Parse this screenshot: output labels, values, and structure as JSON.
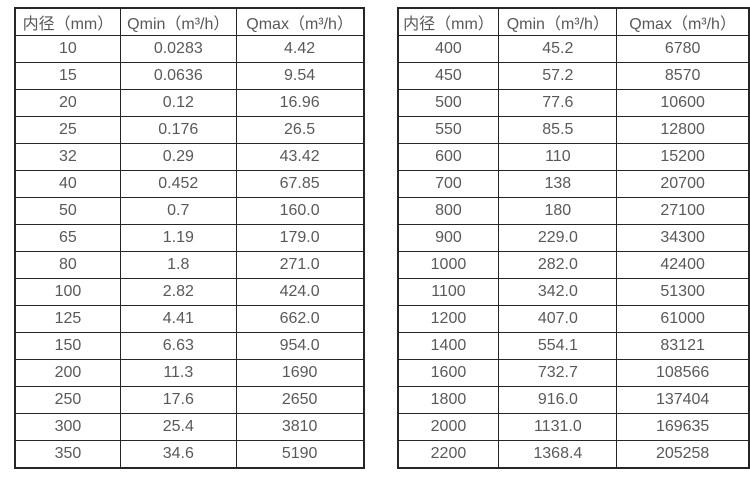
{
  "colors": {
    "border": "#262626",
    "text": "#595959",
    "background": "#ffffff"
  },
  "tables": [
    {
      "name": "small-diameter-flow-table",
      "headers": [
        "内径（mm）",
        "Qmin（m³/h）",
        "Qmax（m³/h）"
      ],
      "rows": [
        [
          "10",
          "0.0283",
          "4.42"
        ],
        [
          "15",
          "0.0636",
          "9.54"
        ],
        [
          "20",
          "0.12",
          "16.96"
        ],
        [
          "25",
          "0.176",
          "26.5"
        ],
        [
          "32",
          "0.29",
          "43.42"
        ],
        [
          "40",
          "0.452",
          "67.85"
        ],
        [
          "50",
          "0.7",
          "160.0"
        ],
        [
          "65",
          "1.19",
          "179.0"
        ],
        [
          "80",
          "1.8",
          "271.0"
        ],
        [
          "100",
          "2.82",
          "424.0"
        ],
        [
          "125",
          "4.41",
          "662.0"
        ],
        [
          "150",
          "6.63",
          "954.0"
        ],
        [
          "200",
          "11.3",
          "1690"
        ],
        [
          "250",
          "17.6",
          "2650"
        ],
        [
          "300",
          "25.4",
          "3810"
        ],
        [
          "350",
          "34.6",
          "5190"
        ]
      ]
    },
    {
      "name": "large-diameter-flow-table",
      "headers": [
        "内径（mm）",
        "Qmin（m³/h）",
        "Qmax（m³/h）"
      ],
      "rows": [
        [
          "400",
          "45.2",
          "6780"
        ],
        [
          "450",
          "57.2",
          "8570"
        ],
        [
          "500",
          "77.6",
          "10600"
        ],
        [
          "550",
          "85.5",
          "12800"
        ],
        [
          "600",
          "110",
          "15200"
        ],
        [
          "700",
          "138",
          "20700"
        ],
        [
          "800",
          "180",
          "27100"
        ],
        [
          "900",
          "229.0",
          "34300"
        ],
        [
          "1000",
          "282.0",
          "42400"
        ],
        [
          "1100",
          "342.0",
          "51300"
        ],
        [
          "1200",
          "407.0",
          "61000"
        ],
        [
          "1400",
          "554.1",
          "83121"
        ],
        [
          "1600",
          "732.7",
          "108566"
        ],
        [
          "1800",
          "916.0",
          "137404"
        ],
        [
          "2000",
          "1131.0",
          "169635"
        ],
        [
          "2200",
          "1368.4",
          "205258"
        ]
      ]
    }
  ]
}
